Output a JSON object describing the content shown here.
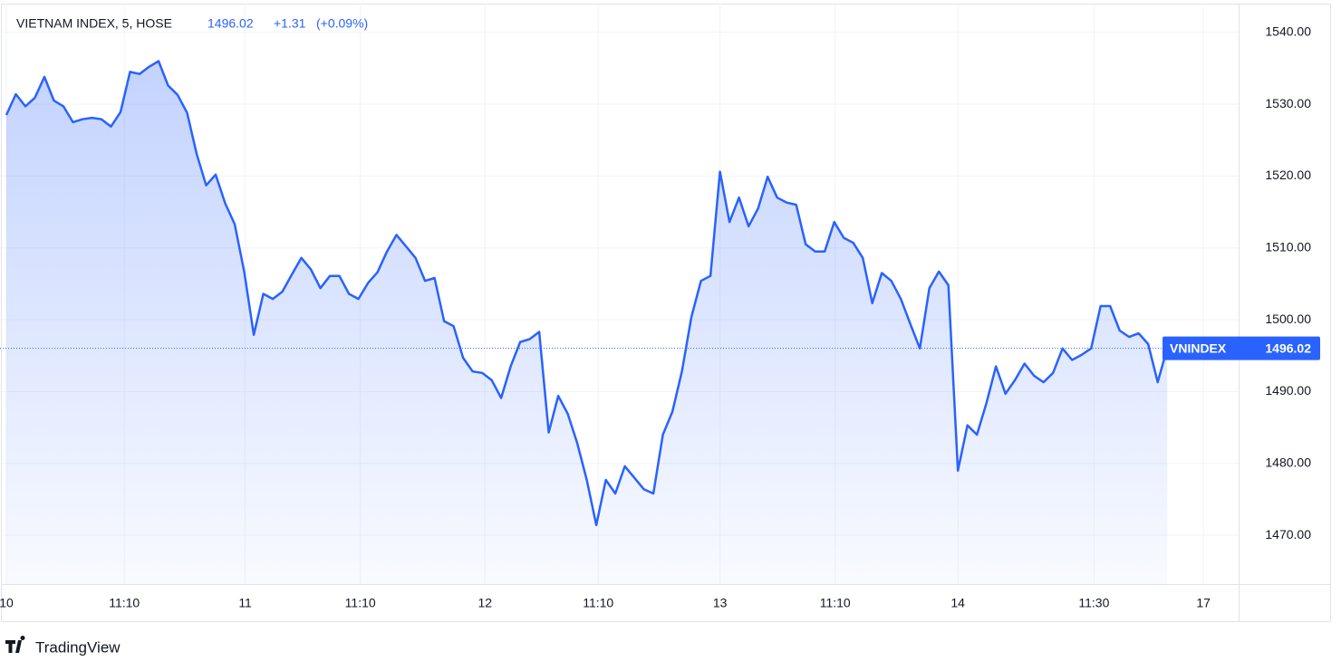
{
  "chart_data": {
    "type": "area",
    "title": "VIETNAM INDEX, 5, HOSE",
    "last_price": 1496.02,
    "change": "+1.31",
    "change_pct": "(+0.09%)",
    "watermark": "TradingView",
    "series": [
      {
        "name": "VNINDEX",
        "color": "#2962ff",
        "values": [
          1528.5,
          1531.4,
          1529.7,
          1530.9,
          1533.8,
          1530.5,
          1529.7,
          1527.5,
          1527.9,
          1528.1,
          1527.9,
          1526.9,
          1528.9,
          1534.5,
          1534.2,
          1535.2,
          1536.0,
          1532.6,
          1531.3,
          1528.8,
          1523.1,
          1518.7,
          1520.2,
          1516.2,
          1513.3,
          1506.7,
          1497.9,
          1503.6,
          1502.9,
          1503.9,
          1506.3,
          1508.6,
          1507.0,
          1504.4,
          1506.1,
          1506.1,
          1503.6,
          1502.9,
          1505.1,
          1506.6,
          1509.5,
          1511.8,
          1510.2,
          1508.6,
          1505.4,
          1505.8,
          1499.8,
          1499.1,
          1494.7,
          1492.8,
          1492.6,
          1491.6,
          1489.1,
          1493.5,
          1496.9,
          1497.3,
          1498.3,
          1484.3,
          1489.4,
          1486.9,
          1482.8,
          1477.7,
          1471.4,
          1477.7,
          1475.8,
          1479.6,
          1478.0,
          1476.4,
          1475.8,
          1484.0,
          1487.2,
          1492.8,
          1500.4,
          1505.4,
          1506.1,
          1520.6,
          1513.6,
          1517.0,
          1513.0,
          1515.5,
          1519.9,
          1517.0,
          1516.3,
          1516.0,
          1510.5,
          1509.5,
          1509.5,
          1513.6,
          1511.4,
          1510.7,
          1508.6,
          1502.3,
          1506.5,
          1505.4,
          1502.9,
          1499.4,
          1496.0,
          1504.4,
          1506.7,
          1504.8,
          1479.0,
          1485.3,
          1484.0,
          1488.4,
          1493.5,
          1489.7,
          1491.6,
          1493.9,
          1492.2,
          1491.3,
          1492.6,
          1496.0,
          1494.4,
          1495.1,
          1496.0,
          1501.9,
          1501.9,
          1498.5,
          1497.6,
          1498.1,
          1496.6,
          1491.3,
          1496.02
        ]
      }
    ],
    "xlim": [
      0,
      129.5
    ],
    "xticks": [
      {
        "value": 0,
        "label": "10"
      },
      {
        "value": 12.4,
        "label": "11:10"
      },
      {
        "value": 25.1,
        "label": "11"
      },
      {
        "value": 37.2,
        "label": "11:10"
      },
      {
        "value": 50.3,
        "label": "12"
      },
      {
        "value": 62.2,
        "label": "11:10"
      },
      {
        "value": 75,
        "label": "13"
      },
      {
        "value": 87.1,
        "label": "11:10"
      },
      {
        "value": 100,
        "label": "14"
      },
      {
        "value": 114.3,
        "label": "11:30"
      },
      {
        "value": 125.8,
        "label": "17"
      }
    ],
    "ylim": [
      1463.2,
      1544.0
    ],
    "yticks": [
      {
        "value": 1470,
        "label": "1470.00"
      },
      {
        "value": 1480,
        "label": "1480.00"
      },
      {
        "value": 1490,
        "label": "1490.00"
      },
      {
        "value": 1500,
        "label": "1500.00"
      },
      {
        "value": 1510,
        "label": "1510.00"
      },
      {
        "value": 1520,
        "label": "1520.00"
      },
      {
        "value": 1530,
        "label": "1530.00"
      },
      {
        "value": 1540,
        "label": "1540.00"
      }
    ],
    "grid": true
  }
}
